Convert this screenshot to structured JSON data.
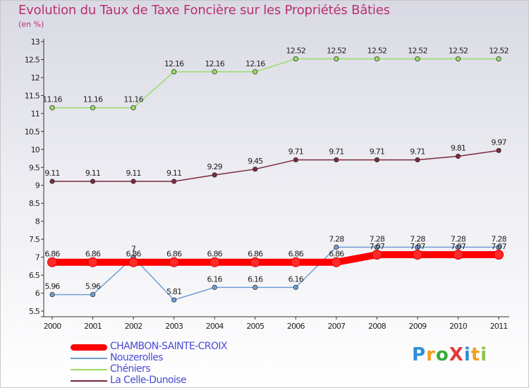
{
  "chart_data": {
    "type": "line",
    "title": "Evolution du Taux de Taxe Foncière sur les Propriétés Bâties",
    "ylabel": "(en %)",
    "xlabel": "",
    "ylim": [
      5.5,
      13
    ],
    "yticks": [
      5.5,
      6,
      6.5,
      7,
      7.5,
      8,
      8.5,
      9,
      9.5,
      10,
      10.5,
      11,
      11.5,
      12,
      12.5,
      13
    ],
    "x": [
      "2000",
      "2001",
      "2002",
      "2003",
      "2004",
      "2005",
      "2006",
      "2007",
      "2008",
      "2009",
      "2010",
      "2011"
    ],
    "series": [
      {
        "name": "CHAMBON-SAINTE-CROIX",
        "color": "#ff0000",
        "values": [
          6.86,
          6.86,
          6.86,
          6.86,
          6.86,
          6.86,
          6.86,
          6.86,
          7.07,
          7.07,
          7.07,
          7.07
        ],
        "labels": [
          "6.86",
          "6.86",
          "6.86",
          "6.86",
          "6.86",
          "6.86",
          "6.86",
          "6.86",
          "7.07",
          "7.07",
          "7.07",
          "7.07"
        ]
      },
      {
        "name": "Nouzerolles",
        "color": "#6f9fd4",
        "values": [
          5.96,
          5.96,
          7,
          5.81,
          6.16,
          6.16,
          6.16,
          7.28,
          7.28,
          7.28,
          7.28,
          7.28
        ],
        "labels": [
          "5.96",
          "5.96",
          "7",
          "5.81",
          "6.16",
          "6.16",
          "6.16",
          "7.28",
          "7.28",
          "7.28",
          "7.28",
          "7.28"
        ]
      },
      {
        "name": "Chéniers",
        "color": "#99dd66",
        "values": [
          11.16,
          11.16,
          11.16,
          12.16,
          12.16,
          12.16,
          12.52,
          12.52,
          12.52,
          12.52,
          12.52,
          12.52
        ],
        "labels": [
          "11.16",
          "11.16",
          "11.16",
          "12.16",
          "12.16",
          "12.16",
          "12.52",
          "12.52",
          "12.52",
          "12.52",
          "12.52",
          "12.52"
        ]
      },
      {
        "name": "La Celle-Dunoise",
        "color": "#7a2a3a",
        "values": [
          9.11,
          9.11,
          9.11,
          9.11,
          9.29,
          9.45,
          9.71,
          9.71,
          9.71,
          9.71,
          9.81,
          9.97
        ],
        "labels": [
          "9.11",
          "9.11",
          "9.11",
          "9.11",
          "9.29",
          "9.45",
          "9.71",
          "9.71",
          "9.71",
          "9.71",
          "9.81",
          "9.97"
        ]
      }
    ],
    "legend": "bottom-left",
    "grid": false
  },
  "logo": {
    "text": "ProXiti",
    "letters": [
      "P",
      "r",
      "o",
      "X",
      "i",
      "t",
      "i"
    ],
    "colors": [
      "#2f8fd8",
      "#f0a020",
      "#3aa83a",
      "#e03a3a",
      "#2f8fd8",
      "#f0a020",
      "#8bc34a"
    ]
  }
}
